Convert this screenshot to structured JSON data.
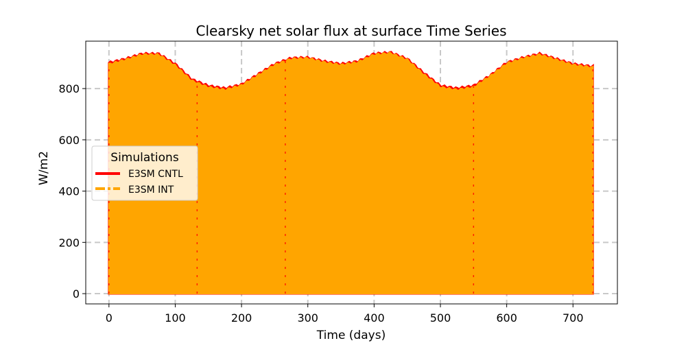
{
  "chart_data": {
    "type": "line",
    "title": "Clearsky net solar flux at surface Time Series",
    "xlabel": "Time (days)",
    "ylabel": "W/m2",
    "xlim": [
      -35,
      767
    ],
    "ylim": [
      -40,
      985
    ],
    "xticks": [
      0,
      100,
      200,
      300,
      400,
      500,
      600,
      700
    ],
    "yticks": [
      0,
      200,
      400,
      600,
      800
    ],
    "grid": true,
    "grid_style": "dashed",
    "legend": {
      "title": "Simulations",
      "placement": "center-left",
      "entries": [
        {
          "label": "E3SM CNTL",
          "color": "#ff0000",
          "style": "solid"
        },
        {
          "label": "E3SM INT",
          "color": "#ffa500",
          "style": "dashed"
        }
      ]
    },
    "series": [
      {
        "name": "E3SM CNTL",
        "color": "#ff0000",
        "description_of_values": "daily max envelope; minimum 0 each night",
        "x": [
          0,
          25,
          50,
          75,
          100,
          125,
          150,
          175,
          200,
          225,
          250,
          275,
          300,
          325,
          350,
          375,
          400,
          425,
          450,
          475,
          500,
          525,
          550,
          575,
          600,
          625,
          650,
          675,
          700,
          730
        ],
        "y_max": [
          900,
          915,
          935,
          935,
          895,
          835,
          810,
          800,
          815,
          855,
          895,
          918,
          920,
          905,
          895,
          905,
          935,
          940,
          915,
          860,
          810,
          800,
          810,
          850,
          900,
          920,
          935,
          915,
          895,
          885
        ],
        "y_min": 0
      },
      {
        "name": "E3SM INT",
        "color": "#ffa500",
        "x": [
          0,
          25,
          50,
          75,
          100,
          125,
          150,
          175,
          200,
          225,
          250,
          275,
          300,
          325,
          350,
          375,
          400,
          425,
          450,
          475,
          500,
          525,
          550,
          575,
          600,
          625,
          650,
          675,
          700,
          730
        ],
        "y_max": [
          895,
          912,
          932,
          932,
          890,
          830,
          805,
          795,
          812,
          852,
          892,
          915,
          918,
          902,
          892,
          902,
          932,
          938,
          912,
          855,
          805,
          795,
          805,
          848,
          897,
          918,
          932,
          912,
          892,
          882
        ],
        "y_min": 0
      }
    ]
  }
}
